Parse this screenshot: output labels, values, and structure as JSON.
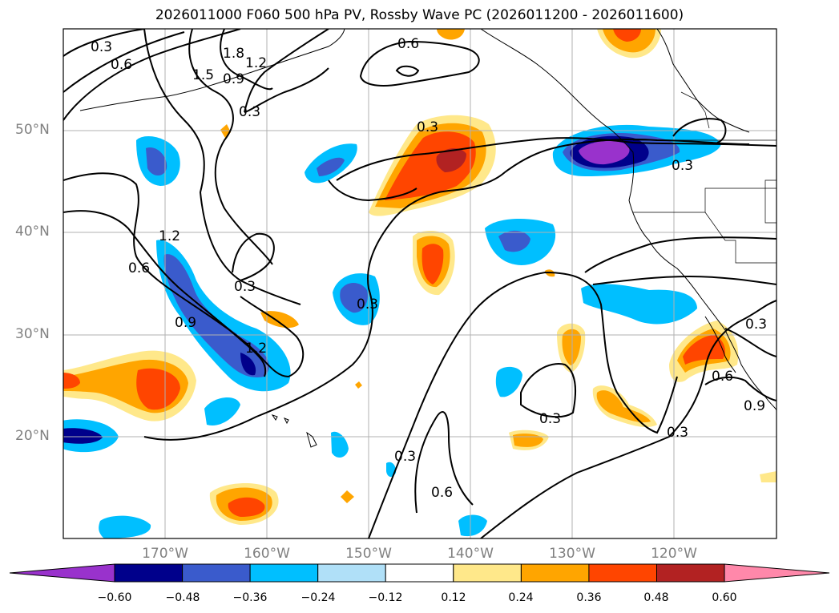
{
  "title": "2026011000 F060 500 hPa PV, Rossby Wave PC (2026011200 - 2026011600)",
  "latitude_labels": [
    "50°N",
    "40°N",
    "30°N",
    "20°N"
  ],
  "longitude_labels": [
    "170°W",
    "160°W",
    "150°W",
    "140°W",
    "130°W",
    "120°W"
  ],
  "contour_labels": [
    "0.3",
    "0.6",
    "1.5",
    "1.8",
    "1.2",
    "0.9",
    "0.3",
    "0.6",
    "0.3",
    "1.2",
    "0.6",
    "0.9",
    "1.2",
    "0.3",
    "0.3",
    "0.3",
    "0.3",
    "0.6",
    "0.3",
    "0.3",
    "0.6",
    "0.9",
    "0.3"
  ],
  "colorbar": {
    "ticks": [
      "−0.60",
      "−0.48",
      "−0.36",
      "−0.24",
      "−0.12",
      "0.12",
      "0.24",
      "0.36",
      "0.48",
      "0.60"
    ],
    "colors": [
      "#9932cc",
      "#00008b",
      "#3a5bcc",
      "#00bfff",
      "#b0e0f8",
      "#ffffff",
      "#ffe88a",
      "#ffa500",
      "#ff4500",
      "#b22222",
      "#ff88aa"
    ]
  },
  "colors": {
    "strong_negative": "#9932cc",
    "negative_1": "#00008b",
    "negative_2": "#3a5bcc",
    "negative_3": "#00bfff",
    "negative_4": "#b0e0f8",
    "positive_1": "#ffe88a",
    "positive_2": "#ffa500",
    "positive_3": "#ff4500",
    "positive_4": "#b22222",
    "strong_positive": "#ff88aa"
  }
}
